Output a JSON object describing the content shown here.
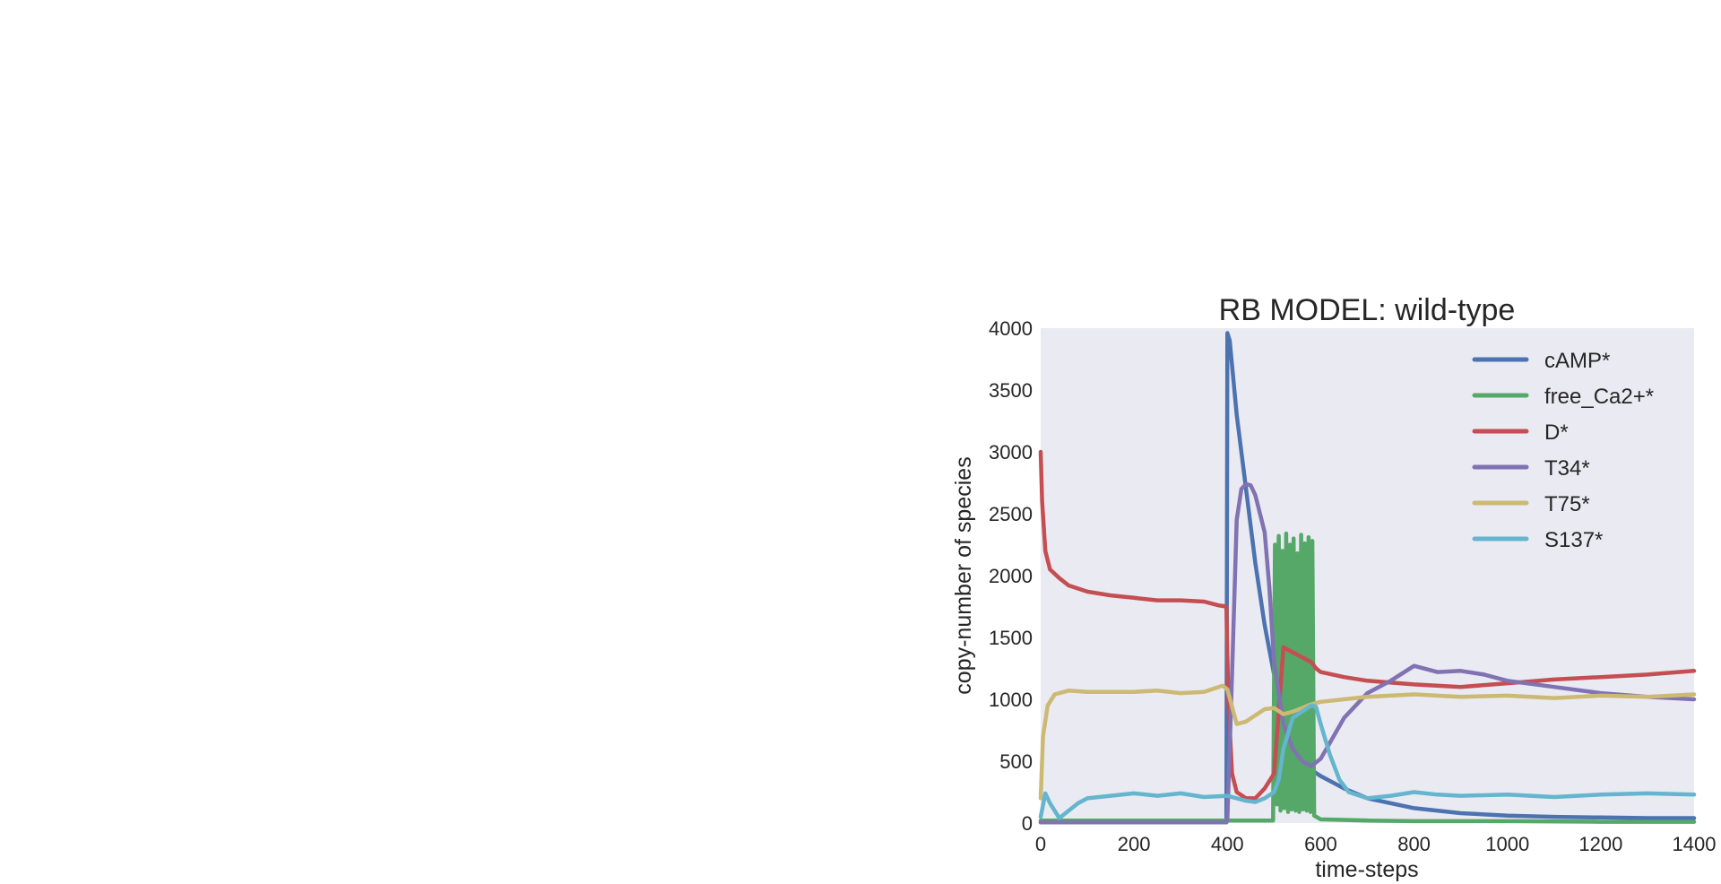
{
  "chart_data": {
    "type": "line",
    "title": "RB MODEL: wild-type",
    "xlabel": "time-steps",
    "ylabel": "copy-number of species",
    "xlim": [
      0,
      1400
    ],
    "ylim": [
      0,
      4000
    ],
    "xticks": [
      0,
      200,
      400,
      600,
      800,
      1000,
      1200,
      1400
    ],
    "yticks": [
      0,
      500,
      1000,
      1500,
      2000,
      2500,
      3000,
      3500,
      4000
    ],
    "grid": false,
    "legend_position": "top-right",
    "series": [
      {
        "name": "cAMP*",
        "color": "#4c72b0",
        "x": [
          0,
          398,
          400,
          405,
          420,
          440,
          460,
          480,
          500,
          520,
          540,
          560,
          580,
          600,
          650,
          700,
          800,
          900,
          1000,
          1100,
          1200,
          1300,
          1400
        ],
        "y": [
          5,
          5,
          3960,
          3900,
          3300,
          2700,
          2100,
          1600,
          1200,
          850,
          650,
          500,
          430,
          380,
          280,
          200,
          120,
          80,
          60,
          50,
          45,
          40,
          40
        ]
      },
      {
        "name": "free_Ca2+*",
        "color": "#55a868",
        "x": [
          0,
          498,
          502,
          506,
          510,
          514,
          518,
          522,
          526,
          530,
          534,
          538,
          542,
          546,
          550,
          554,
          558,
          562,
          566,
          570,
          574,
          578,
          582,
          586,
          600,
          700,
          800,
          1000,
          1200,
          1400
        ],
        "y": [
          20,
          20,
          2250,
          150,
          2320,
          100,
          2200,
          120,
          2340,
          90,
          2250,
          110,
          2300,
          100,
          2180,
          90,
          2330,
          110,
          2260,
          100,
          2310,
          90,
          2280,
          60,
          30,
          20,
          15,
          15,
          10,
          10
        ]
      },
      {
        "name": "D*",
        "color": "#c44e52",
        "x": [
          0,
          3,
          10,
          20,
          40,
          60,
          100,
          150,
          200,
          250,
          300,
          350,
          380,
          398,
          402,
          410,
          420,
          440,
          460,
          480,
          500,
          510,
          520,
          540,
          560,
          580,
          590,
          600,
          650,
          700,
          800,
          900,
          1000,
          1100,
          1200,
          1300,
          1400
        ],
        "y": [
          3000,
          2600,
          2200,
          2050,
          1980,
          1920,
          1870,
          1840,
          1820,
          1800,
          1800,
          1790,
          1760,
          1750,
          1000,
          400,
          250,
          200,
          200,
          280,
          400,
          900,
          1420,
          1380,
          1340,
          1300,
          1250,
          1220,
          1180,
          1150,
          1120,
          1100,
          1130,
          1160,
          1180,
          1200,
          1230
        ]
      },
      {
        "name": "T34*",
        "color": "#8172b2",
        "x": [
          0,
          398,
          400,
          410,
          420,
          430,
          440,
          450,
          460,
          470,
          480,
          490,
          500,
          520,
          540,
          560,
          580,
          600,
          620,
          650,
          700,
          750,
          800,
          850,
          900,
          950,
          1000,
          1100,
          1200,
          1300,
          1400
        ],
        "y": [
          5,
          5,
          30,
          1200,
          2450,
          2700,
          2740,
          2730,
          2650,
          2500,
          2350,
          1900,
          1300,
          800,
          600,
          500,
          460,
          520,
          650,
          850,
          1050,
          1150,
          1270,
          1220,
          1230,
          1200,
          1150,
          1100,
          1050,
          1020,
          1000
        ]
      },
      {
        "name": "T75*",
        "color": "#ccb974",
        "x": [
          0,
          5,
          15,
          30,
          60,
          100,
          150,
          200,
          250,
          300,
          350,
          390,
          400,
          420,
          440,
          460,
          480,
          500,
          520,
          540,
          560,
          580,
          600,
          650,
          700,
          800,
          900,
          1000,
          1100,
          1200,
          1300,
          1400
        ],
        "y": [
          200,
          700,
          950,
          1040,
          1070,
          1060,
          1060,
          1060,
          1070,
          1050,
          1060,
          1110,
          1080,
          800,
          820,
          870,
          920,
          930,
          880,
          900,
          930,
          960,
          980,
          1000,
          1020,
          1040,
          1020,
          1030,
          1010,
          1030,
          1020,
          1040
        ]
      },
      {
        "name": "S137*",
        "color": "#64b5cd",
        "x": [
          0,
          10,
          20,
          40,
          60,
          80,
          100,
          150,
          200,
          250,
          300,
          350,
          400,
          420,
          440,
          460,
          480,
          500,
          510,
          520,
          540,
          560,
          580,
          590,
          600,
          620,
          640,
          660,
          700,
          750,
          800,
          850,
          900,
          1000,
          1100,
          1200,
          1300,
          1400
        ],
        "y": [
          50,
          240,
          160,
          40,
          100,
          160,
          200,
          220,
          240,
          220,
          240,
          210,
          220,
          200,
          180,
          170,
          200,
          250,
          350,
          600,
          850,
          900,
          950,
          940,
          800,
          550,
          350,
          250,
          200,
          220,
          250,
          230,
          220,
          230,
          210,
          230,
          240,
          230
        ]
      }
    ]
  }
}
